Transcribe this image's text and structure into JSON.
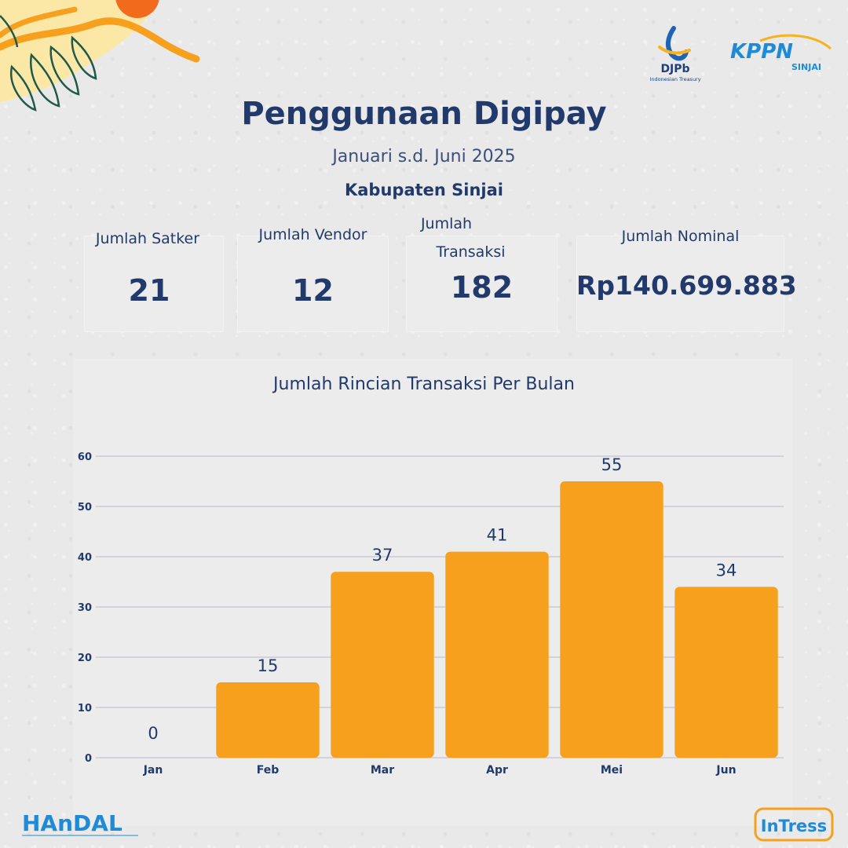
{
  "header": {
    "title": "Penggunaan Digipay",
    "period": "Januari s.d. Juni 2025",
    "region": "Kabupaten Sinjai"
  },
  "logos": {
    "djpb_name": "DJPb",
    "djpb_tagline": "Indonesian Treasury",
    "kppn_name": "KPPN",
    "kppn_city": "SINJAI",
    "handal_name": "HAnDAL",
    "intress_name": "InTress"
  },
  "stats": {
    "satker_label": "Jumlah Satker",
    "satker_value": "21",
    "vendor_label": "Jumlah Vendor",
    "vendor_value": "12",
    "transaksi_label_line1": "Jumlah",
    "transaksi_label_line2": "Transaksi",
    "transaksi_value": "182",
    "nominal_label": "Jumlah Nominal",
    "nominal_value": "Rp140.699.883"
  },
  "colors": {
    "bar": "#f7a01d",
    "navy": "#223a6b",
    "grid": "#b9b9c9"
  },
  "chart_data": {
    "type": "bar",
    "title": "Jumlah Rincian Transaksi Per Bulan",
    "categories": [
      "Jan",
      "Feb",
      "Mar",
      "Apr",
      "Mei",
      "Jun"
    ],
    "values": [
      0,
      15,
      37,
      41,
      55,
      34
    ],
    "ylim": [
      0,
      60
    ],
    "yticks": [
      0,
      10,
      20,
      30,
      40,
      50,
      60
    ],
    "grid": true,
    "data_labels": true
  }
}
